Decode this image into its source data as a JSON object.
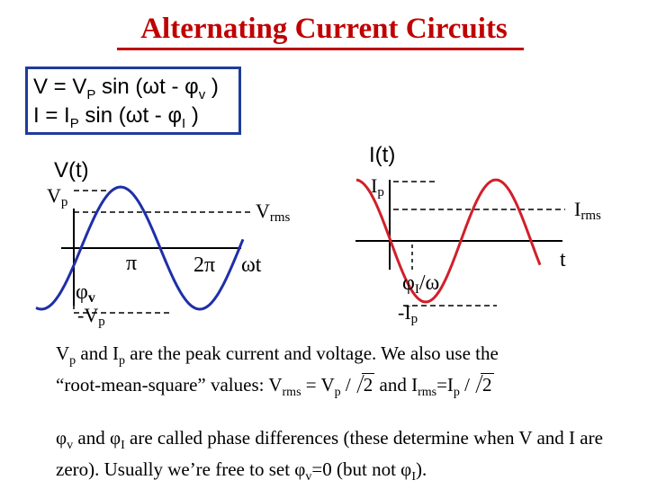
{
  "title": "Alternating Current Circuits",
  "equations": {
    "v_lhs": "V = ",
    "v_amp": "V",
    "v_amp_sub": "P",
    "v_mid": " sin (ωt - ",
    "v_phi": "φ",
    "v_phi_sub": "v",
    "v_end": " )",
    "i_lhs": "I = ",
    "i_amp": "I",
    "i_amp_sub": "P",
    "i_mid": " sin (ωt - ",
    "i_phi": "φ",
    "i_phi_sub": "I",
    "i_end": " )"
  },
  "voltage_plot": {
    "title": "V(t)",
    "peak_label": "V",
    "peak_sub": "p",
    "rms_label": "V",
    "rms_sub": "rms",
    "pi_label": "π",
    "two_pi_label": "2π",
    "x_label": "ωt",
    "phase_label": "φ",
    "phase_sub": "v",
    "neg_peak_label": "-V",
    "neg_peak_sub": "p"
  },
  "current_plot": {
    "title": "I(t)",
    "peak_label": "I",
    "peak_sub": "p",
    "rms_label": "I",
    "rms_sub": "rms",
    "x_label": "t",
    "phase_label": "φ",
    "phase_sub": "I",
    "phase_tail": "/ω",
    "neg_peak_label": "-I",
    "neg_peak_sub": "p"
  },
  "paragraph1": {
    "s1": "V",
    "s1_sub": "p",
    "s2": " and I",
    "s2_sub": "p",
    "s3": " are the peak current and voltage.  We also use the",
    "s4": "“root-mean-square” values:  V",
    "s4_sub": "rms",
    "s5": " = V",
    "s5_sub": "p",
    "s6": " /",
    "root1": "2",
    "s7": "  and I",
    "s7_sub": "rms",
    "s8": "=I",
    "s8_sub": "p",
    "s9": " /",
    "root2": "2"
  },
  "paragraph2": {
    "s1": "φ",
    "s1_sub": "v",
    "s2": " and φ",
    "s2_sub": "I",
    "s3": " are called phase differences (these determine when V and I are zero).  Usually we’re free to set φ",
    "s3_sub": "v",
    "s4": "=0 (but not φ",
    "s4_sub": "I",
    "s5": ")."
  },
  "colors": {
    "title": "#c00000",
    "box_border": "#1f3b9a",
    "voltage_curve": "#1f2fa8",
    "current_curve": "#d0202a",
    "text": "#000000",
    "background": "#ffffff"
  }
}
